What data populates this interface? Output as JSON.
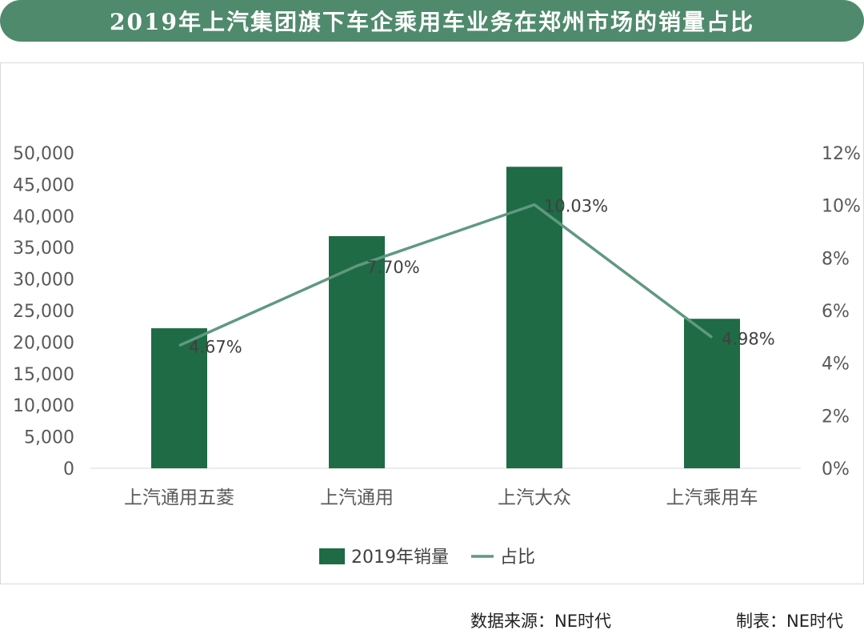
{
  "title": "2019年上汽集团旗下车企乘用车业务在郑州市场的销量占比",
  "colors": {
    "title_bg": "#4f8a6c",
    "bar": "#1e6b46",
    "line": "#5f9980",
    "axis_text": "#595959",
    "gridline": "#d9d9d9"
  },
  "chart_data": {
    "type": "bar",
    "categories": [
      "上汽通用五菱",
      "上汽通用",
      "上汽大众",
      "上汽乘用车"
    ],
    "series": [
      {
        "name": "2019年销量",
        "type": "bar",
        "axis": "left",
        "values": [
          22200,
          36800,
          47800,
          23700
        ]
      },
      {
        "name": "占比",
        "type": "line",
        "axis": "right",
        "values": [
          4.67,
          7.7,
          10.03,
          4.98
        ],
        "labels": [
          "4.67%",
          "7.70%",
          "10.03%",
          "4.98%"
        ]
      }
    ],
    "y_left": {
      "lim": [
        0,
        50000
      ],
      "ticks": [
        0,
        5000,
        10000,
        15000,
        20000,
        25000,
        30000,
        35000,
        40000,
        45000,
        50000
      ],
      "tick_labels": [
        "0",
        "5,000",
        "10,000",
        "15,000",
        "20,000",
        "25,000",
        "30,000",
        "35,000",
        "40,000",
        "45,000",
        "50,000"
      ]
    },
    "y_right": {
      "lim": [
        0,
        12
      ],
      "ticks": [
        0,
        2,
        4,
        6,
        8,
        10,
        12
      ],
      "tick_labels": [
        "0%",
        "2%",
        "4%",
        "6%",
        "8%",
        "10%",
        "12%"
      ]
    },
    "grid": false,
    "legend": "bottom"
  },
  "footer": {
    "source": "数据来源：NE时代",
    "maker": "制表：NE时代"
  }
}
